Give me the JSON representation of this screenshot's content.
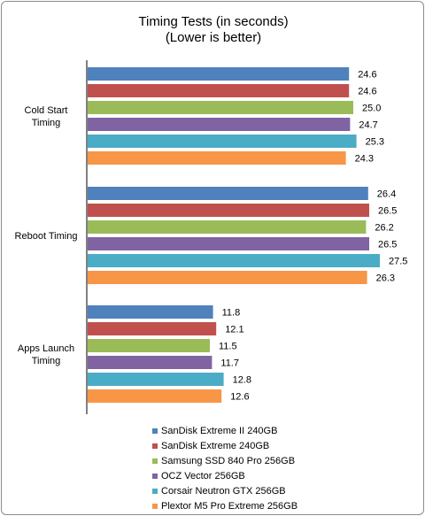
{
  "chart_data": {
    "type": "bar",
    "orientation": "horizontal",
    "title": "Timing Tests (in seconds)",
    "subtitle": "(Lower is better)",
    "categories": [
      "Cold Start Timing",
      "Reboot Timing",
      "Apps Launch Timing"
    ],
    "category_label_lines": [
      [
        "Cold Start",
        "Timing"
      ],
      [
        "Reboot Timing"
      ],
      [
        "Apps Launch",
        "Timing"
      ]
    ],
    "xlim": [
      0,
      30
    ],
    "grid": false,
    "legend_position": "bottom",
    "series": [
      {
        "name": "SanDisk Extreme II 240GB",
        "color": "#4f81bd",
        "values": [
          24.6,
          26.4,
          11.8
        ],
        "labels": [
          "24.6",
          "26.4",
          "11.8"
        ]
      },
      {
        "name": "SanDisk Extreme 240GB",
        "color": "#c0504d",
        "values": [
          24.6,
          26.5,
          12.1
        ],
        "labels": [
          "24.6",
          "26.5",
          "12.1"
        ]
      },
      {
        "name": "Samsung SSD 840 Pro 256GB",
        "color": "#9bbb59",
        "values": [
          25.0,
          26.2,
          11.5
        ],
        "labels": [
          "25.0",
          "26.2",
          "11.5"
        ]
      },
      {
        "name": "OCZ Vector 256GB",
        "color": "#8064a2",
        "values": [
          24.7,
          26.5,
          11.7
        ],
        "labels": [
          "24.7",
          "26.5",
          "11.7"
        ]
      },
      {
        "name": "Corsair Neutron GTX 256GB",
        "color": "#4bacc6",
        "values": [
          25.3,
          27.5,
          12.8
        ],
        "labels": [
          "25.3",
          "27.5",
          "12.8"
        ]
      },
      {
        "name": "Plextor M5 Pro Extreme 256GB",
        "color": "#f79646",
        "values": [
          24.3,
          26.3,
          12.6
        ],
        "labels": [
          "24.3",
          "26.3",
          "12.6"
        ]
      }
    ]
  }
}
